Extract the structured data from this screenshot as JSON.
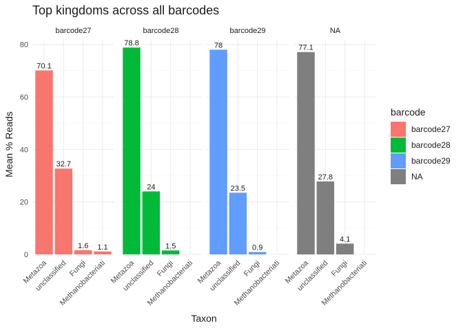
{
  "chart_data": {
    "type": "bar",
    "title": "Top kingdoms across all barcodes",
    "xlabel": "Taxon",
    "ylabel": "Mean % Reads",
    "categories": [
      "Metazoa",
      "unclassified",
      "Fungi",
      "Methanobacteriati"
    ],
    "ylim": [
      0,
      82
    ],
    "yticks": [
      0,
      20,
      40,
      60,
      80
    ],
    "grid": true,
    "legend": {
      "title": "barcode",
      "position": "right",
      "entries": [
        {
          "label": "barcode27",
          "color": "#F8766D"
        },
        {
          "label": "barcode28",
          "color": "#00BA38"
        },
        {
          "label": "barcode29",
          "color": "#619CFF"
        },
        {
          "label": "NA",
          "color": "#7F7F7F"
        }
      ]
    },
    "facets": [
      {
        "name": "barcode27",
        "color": "#F8766D",
        "values": [
          70.1,
          32.7,
          1.6,
          1.1
        ],
        "labels": [
          "70.1",
          "32.7",
          "1.6",
          "1.1"
        ]
      },
      {
        "name": "barcode28",
        "color": "#00BA38",
        "values": [
          78.8,
          24,
          1.5,
          null
        ],
        "labels": [
          "78.8",
          "24",
          "1.5",
          null
        ]
      },
      {
        "name": "barcode29",
        "color": "#619CFF",
        "values": [
          78,
          23.5,
          0.9,
          null
        ],
        "labels": [
          "78",
          "23.5",
          "0.9",
          null
        ]
      },
      {
        "name": "NA",
        "color": "#7F7F7F",
        "values": [
          77.1,
          27.8,
          4.1,
          null
        ],
        "labels": [
          "77.1",
          "27.8",
          "4.1",
          null
        ]
      }
    ]
  }
}
